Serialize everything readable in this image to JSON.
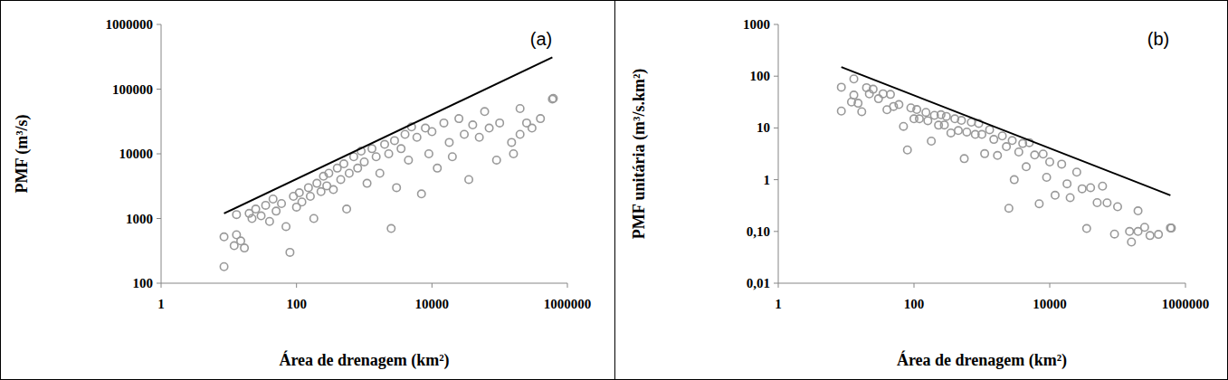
{
  "chart_data": [
    {
      "type": "scatter",
      "title": "(a)",
      "x_label": "Área de drenagem (km²)",
      "y_label": "PMF (m³/s)",
      "log": true,
      "grid": false,
      "xlim": [
        1,
        1000000
      ],
      "xticks": [
        1,
        100,
        10000,
        1000000
      ],
      "ylim": [
        100,
        1000000
      ],
      "yticks": [
        100,
        1000,
        10000,
        100000,
        1000000
      ],
      "series": [
        {
          "type": "scatter",
          "color": "#999999",
          "marker": "circle",
          "x": [
            8.5,
            8.5,
            12,
            13,
            13,
            15,
            17,
            20,
            22,
            25,
            30,
            35,
            40,
            45,
            50,
            60,
            70,
            80,
            90,
            100,
            110,
            120,
            150,
            160,
            180,
            200,
            230,
            250,
            280,
            300,
            350,
            400,
            450,
            500,
            550,
            600,
            700,
            800,
            900,
            1000,
            1100,
            1300,
            1500,
            1700,
            2000,
            2300,
            2500,
            2800,
            3000,
            3500,
            4000,
            4500,
            5000,
            6000,
            7000,
            8000,
            9000,
            10000,
            12000,
            15000,
            18000,
            20000,
            25000,
            30000,
            35000,
            40000,
            50000,
            60000,
            70000,
            90000,
            100000,
            150000,
            160000,
            200000,
            200000,
            250000,
            300000,
            400000,
            600000,
            620000
          ],
          "values": [
            520,
            180,
            380,
            1150,
            560,
            450,
            350,
            1200,
            1000,
            1400,
            1100,
            1600,
            900,
            2000,
            1300,
            1700,
            750,
            300,
            2200,
            1500,
            2500,
            1800,
            3000,
            2200,
            1000,
            3500,
            2600,
            4500,
            3200,
            5000,
            2800,
            6000,
            4000,
            7000,
            1400,
            5000,
            9000,
            6000,
            11000,
            7500,
            3500,
            12000,
            9000,
            5000,
            14000,
            10000,
            700,
            16000,
            3000,
            12000,
            20000,
            8000,
            26000,
            18000,
            2400,
            25000,
            10000,
            22000,
            6000,
            30000,
            15000,
            9000,
            35000,
            20000,
            4000,
            28000,
            18000,
            45000,
            25000,
            8000,
            30000,
            15000,
            10000,
            50000,
            20000,
            30000,
            25000,
            35000,
            70000,
            72000
          ]
        },
        {
          "type": "line",
          "color": "#000000",
          "line_style": "solid",
          "x": [
            8.5,
            600000
          ],
          "values": [
            1200,
            310000
          ]
        }
      ]
    },
    {
      "type": "scatter",
      "title": "(b)",
      "x_label": "Área de drenagem (km²)",
      "y_label": "PMF unitária (m³/s.km²)",
      "log": true,
      "grid": false,
      "xlim": [
        1,
        1000000
      ],
      "xticks": [
        1,
        100,
        10000,
        1000000
      ],
      "ylim": [
        0.01,
        1000
      ],
      "yticks": [
        {
          "value": 0.01,
          "label": "0,01"
        },
        {
          "value": 0.1,
          "label": "0,10"
        },
        1,
        10,
        100,
        1000
      ],
      "series": [
        {
          "type": "scatter",
          "color": "#999999",
          "marker": "circle",
          "x": [
            8.5,
            8.5,
            12,
            13,
            13,
            15,
            17,
            20,
            22,
            25,
            30,
            35,
            40,
            45,
            50,
            60,
            70,
            80,
            90,
            100,
            110,
            120,
            150,
            160,
            180,
            200,
            230,
            250,
            280,
            300,
            350,
            400,
            450,
            500,
            550,
            600,
            700,
            800,
            900,
            1000,
            1100,
            1300,
            1500,
            1700,
            2000,
            2300,
            2500,
            2800,
            3000,
            3500,
            4000,
            4500,
            5000,
            6000,
            7000,
            8000,
            9000,
            10000,
            12000,
            15000,
            18000,
            20000,
            25000,
            30000,
            35000,
            40000,
            50000,
            60000,
            70000,
            90000,
            100000,
            150000,
            160000,
            200000,
            200000,
            250000,
            300000,
            400000,
            600000,
            620000
          ],
          "values": [
            61.2,
            21.2,
            31.7,
            88.5,
            43.1,
            30,
            20.6,
            60,
            45.5,
            56,
            36.7,
            45.7,
            22.5,
            44.4,
            26,
            28.3,
            10.7,
            3.75,
            24.4,
            15,
            22.7,
            15,
            20,
            13.8,
            5.56,
            17.5,
            11.3,
            18,
            11.4,
            16.7,
            8,
            15,
            8.89,
            14,
            2.55,
            8.33,
            12.9,
            7.5,
            12.2,
            7.5,
            3.18,
            9.23,
            6,
            2.94,
            7,
            4.35,
            0.28,
            5.71,
            1,
            3.43,
            5,
            1.78,
            5.2,
            3,
            0.343,
            3.13,
            1.11,
            2.2,
            0.5,
            2,
            0.833,
            0.45,
            1.4,
            0.667,
            0.114,
            0.7,
            0.36,
            0.75,
            0.357,
            0.0889,
            0.3,
            0.1,
            0.0625,
            0.25,
            0.1,
            0.12,
            0.0833,
            0.0875,
            0.117,
            0.116
          ]
        },
        {
          "type": "line",
          "color": "#000000",
          "line_style": "solid",
          "x": [
            8.5,
            600000
          ],
          "values": [
            150,
            0.5
          ]
        }
      ]
    }
  ]
}
